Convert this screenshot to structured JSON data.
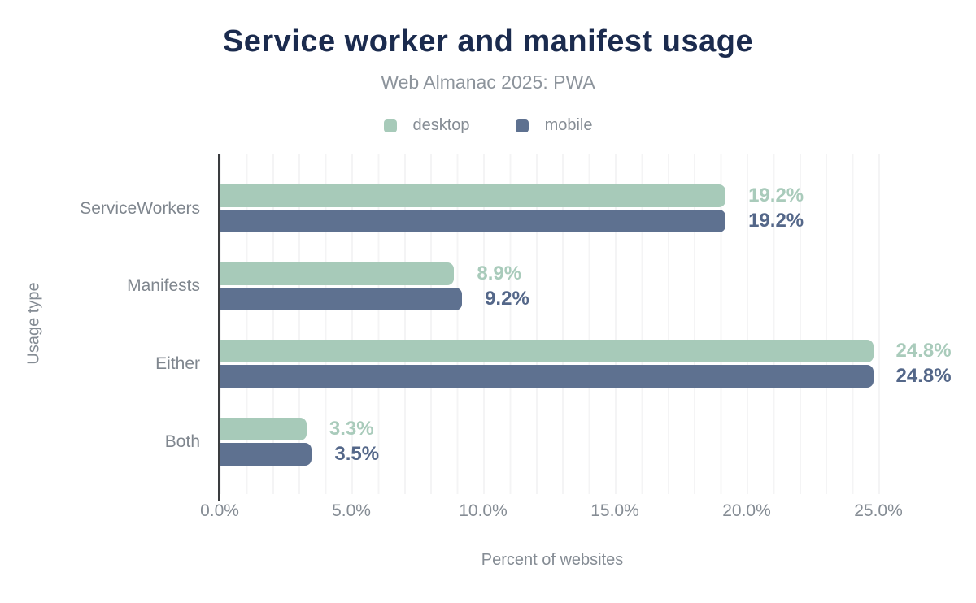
{
  "header": {
    "title": "Service worker and manifest usage",
    "subtitle": "Web Almanac 2025: PWA"
  },
  "legend": {
    "items": [
      {
        "label": "desktop",
        "color": "#a7cab9"
      },
      {
        "label": "mobile",
        "color": "#5e7190"
      }
    ]
  },
  "chart_data": {
    "type": "bar",
    "orientation": "horizontal",
    "title": "Service worker and manifest usage",
    "subtitle": "Web Almanac 2025: PWA",
    "categories": [
      "ServiceWorkers",
      "Manifests",
      "Either",
      "Both"
    ],
    "series": [
      {
        "name": "desktop",
        "color": "#a7cab9",
        "label_color": "#a9cbbb",
        "values": [
          19.2,
          8.9,
          24.8,
          3.3
        ],
        "value_labels": [
          "19.2%",
          "8.9%",
          "24.8%",
          "3.3%"
        ]
      },
      {
        "name": "mobile",
        "color": "#5e7190",
        "label_color": "#546789",
        "values": [
          19.2,
          9.2,
          24.8,
          3.5
        ],
        "value_labels": [
          "19.2%",
          "9.2%",
          "24.8%",
          "3.5%"
        ]
      }
    ],
    "xlabel": "Percent of websites",
    "ylabel": "Usage type",
    "xlim": [
      0,
      25
    ],
    "x_ticks": [
      {
        "value": 0,
        "label": "0.0%"
      },
      {
        "value": 5,
        "label": "5.0%"
      },
      {
        "value": 10,
        "label": "10.0%"
      },
      {
        "value": 15,
        "label": "15.0%"
      },
      {
        "value": 20,
        "label": "20.0%"
      },
      {
        "value": 25,
        "label": "25.0%"
      }
    ],
    "grid": {
      "orientation": "vertical",
      "spacing_percent": 1,
      "color": "#f4f4f5"
    },
    "legend_position": "top"
  },
  "colors": {
    "title": "#1b2b4e",
    "muted_text": "#858c94",
    "axis_line": "#3a3c3f",
    "background": "#ffffff"
  }
}
